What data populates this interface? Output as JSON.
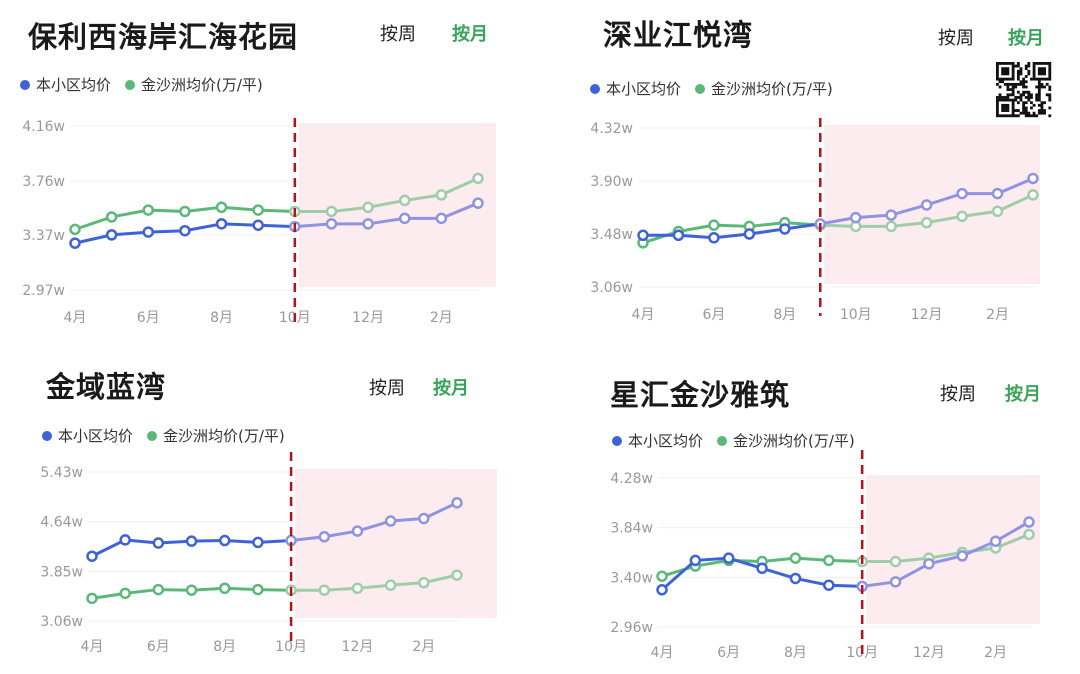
{
  "colors": {
    "own": "#3f63d6",
    "own_forecast": "#9094e0",
    "area": "#5cb878",
    "area_forecast": "#9fcda9",
    "divider": "#b5121b",
    "forecast_shade": "#fdecef",
    "active_button": "#3aa35a"
  },
  "panels": [
    {
      "title": "保利西海岸汇海花园",
      "week_label": "按周",
      "month_label": "按月",
      "active": "month",
      "legend": [
        "本小区均价",
        "金沙洲均价(万/平)"
      ]
    },
    {
      "title": "深业江悦湾",
      "week_label": "按周",
      "month_label": "按月",
      "active": "month",
      "legend": [
        "本小区均价",
        "金沙洲均价(万/平)"
      ],
      "qr_code": "qr-code-icon"
    },
    {
      "title": "金域蓝湾",
      "week_label": "按周",
      "month_label": "按月",
      "active": "month",
      "legend": [
        "本小区均价",
        "金沙洲均价(万/平)"
      ]
    },
    {
      "title": "星汇金沙雅筑",
      "week_label": "按周",
      "month_label": "按月",
      "active": "month",
      "legend": [
        "本小区均价",
        "金沙洲均价(万/平)"
      ]
    }
  ],
  "chart_data": [
    {
      "type": "line",
      "categories": [
        "4月",
        "5月",
        "6月",
        "7月",
        "8月",
        "9月",
        "10月",
        "11月",
        "12月",
        "1月",
        "2月",
        "3月"
      ],
      "x_tick_labels": [
        "4月",
        "6月",
        "8月",
        "10月",
        "12月",
        "2月"
      ],
      "y_ticks": [
        2.97,
        3.37,
        3.76,
        4.16
      ],
      "y_tick_labels": [
        "2.97w",
        "3.37w",
        "3.76w",
        "4.16w"
      ],
      "ylim": [
        2.97,
        4.16
      ],
      "grid": true,
      "forecast_start": "10月",
      "series": [
        {
          "name": "本小区均价",
          "values": [
            3.31,
            3.37,
            3.39,
            3.4,
            3.45,
            3.44,
            3.43,
            3.45,
            3.45,
            3.49,
            3.49,
            3.6
          ]
        },
        {
          "name": "金沙洲均价(万/平)",
          "values": [
            3.41,
            3.5,
            3.55,
            3.54,
            3.57,
            3.55,
            3.54,
            3.54,
            3.57,
            3.62,
            3.66,
            3.78
          ]
        }
      ]
    },
    {
      "type": "line",
      "categories": [
        "4月",
        "5月",
        "6月",
        "7月",
        "8月",
        "9月",
        "10月",
        "11月",
        "12月",
        "1月",
        "2月",
        "3月"
      ],
      "x_tick_labels": [
        "4月",
        "6月",
        "8月",
        "10月",
        "12月",
        "2月"
      ],
      "y_ticks": [
        3.06,
        3.48,
        3.9,
        4.32
      ],
      "y_tick_labels": [
        "3.06w",
        "3.48w",
        "3.90w",
        "4.32w"
      ],
      "ylim": [
        3.06,
        4.32
      ],
      "grid": true,
      "forecast_start": "9月",
      "series": [
        {
          "name": "本小区均价",
          "values": [
            3.47,
            3.47,
            3.45,
            3.48,
            3.52,
            3.56,
            3.61,
            3.63,
            3.71,
            3.8,
            3.8,
            3.92
          ]
        },
        {
          "name": "金沙洲均价(万/平)",
          "values": [
            3.41,
            3.5,
            3.55,
            3.54,
            3.57,
            3.55,
            3.54,
            3.54,
            3.57,
            3.62,
            3.66,
            3.79
          ]
        }
      ]
    },
    {
      "type": "line",
      "categories": [
        "4月",
        "5月",
        "6月",
        "7月",
        "8月",
        "9月",
        "10月",
        "11月",
        "12月",
        "1月",
        "2月",
        "3月"
      ],
      "x_tick_labels": [
        "4月",
        "6月",
        "8月",
        "10月",
        "12月",
        "2月"
      ],
      "y_ticks": [
        3.06,
        3.85,
        4.64,
        5.43
      ],
      "y_tick_labels": [
        "3.06w",
        "3.85w",
        "4.64w",
        "5.43w"
      ],
      "ylim": [
        3.06,
        5.43
      ],
      "grid": true,
      "forecast_start": "10月",
      "series": [
        {
          "name": "本小区均价",
          "values": [
            4.09,
            4.35,
            4.3,
            4.33,
            4.34,
            4.31,
            4.34,
            4.4,
            4.49,
            4.65,
            4.69,
            4.94
          ]
        },
        {
          "name": "金沙洲均价(万/平)",
          "values": [
            3.42,
            3.5,
            3.56,
            3.55,
            3.58,
            3.56,
            3.55,
            3.55,
            3.58,
            3.63,
            3.67,
            3.79
          ]
        }
      ]
    },
    {
      "type": "line",
      "categories": [
        "4月",
        "5月",
        "6月",
        "7月",
        "8月",
        "9月",
        "10月",
        "11月",
        "12月",
        "1月",
        "2月",
        "3月"
      ],
      "x_tick_labels": [
        "4月",
        "6月",
        "8月",
        "10月",
        "12月",
        "2月"
      ],
      "y_ticks": [
        2.96,
        3.4,
        3.84,
        4.28
      ],
      "y_tick_labels": [
        "2.96w",
        "3.40w",
        "3.84w",
        "4.28w"
      ],
      "ylim": [
        2.96,
        4.28
      ],
      "grid": true,
      "forecast_start": "10月",
      "series": [
        {
          "name": "本小区均价",
          "values": [
            3.29,
            3.55,
            3.57,
            3.48,
            3.39,
            3.33,
            3.32,
            3.36,
            3.52,
            3.59,
            3.72,
            3.89
          ]
        },
        {
          "name": "金沙洲均价(万/平)",
          "values": [
            3.41,
            3.5,
            3.55,
            3.54,
            3.57,
            3.55,
            3.54,
            3.54,
            3.57,
            3.62,
            3.66,
            3.78
          ]
        }
      ]
    }
  ]
}
